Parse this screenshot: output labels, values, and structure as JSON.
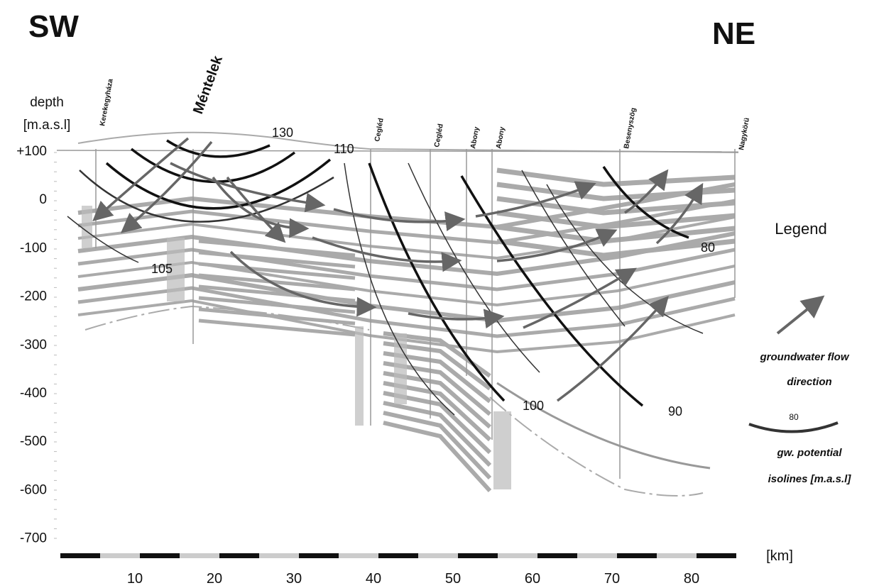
{
  "header": {
    "left": "SW",
    "right": "NE"
  },
  "y_axis": {
    "label": [
      "depth",
      "[m.a.s.l]"
    ],
    "ticks": [
      "+100",
      "0",
      "-100",
      "-200",
      "-300",
      "-400",
      "-500",
      "-600",
      "-700"
    ]
  },
  "x_axis": {
    "ticks": [
      "10",
      "20",
      "30",
      "40",
      "50",
      "60",
      "70",
      "80"
    ],
    "unit": "[km]"
  },
  "wells": [
    "Kerekegyháza",
    "Méntelek",
    "Cegléd",
    "Cegléd",
    "Abony",
    "Abony",
    "Besenyszög",
    "Nagykörü"
  ],
  "isoline_labels": [
    "130",
    "110",
    "105",
    "100",
    "90",
    "80"
  ],
  "legend": {
    "title": "Legend",
    "flow": [
      "groundwater flow",
      "direction"
    ],
    "isoline_value": "80",
    "isolines": [
      "gw. potential",
      "isolines [m.a.s.l]"
    ]
  }
}
